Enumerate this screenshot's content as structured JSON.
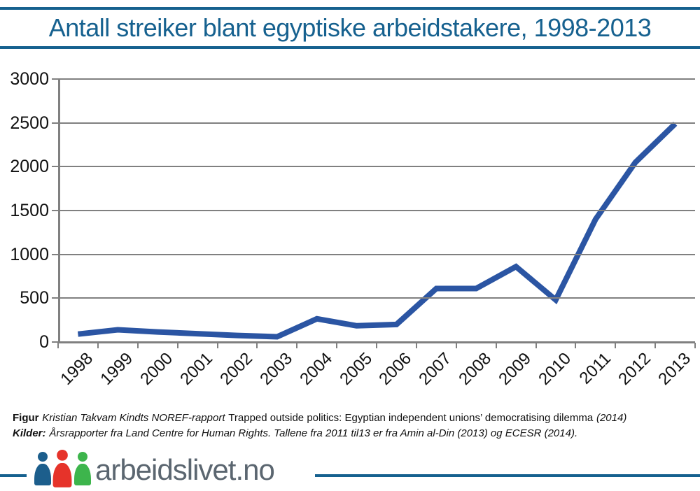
{
  "title": {
    "text": "Antall streiker blant egyptiske arbeidstakere, 1998-2013"
  },
  "chart_data": {
    "type": "line",
    "title": "Antall streiker blant egyptiske arbeidstakere, 1998-2013",
    "categories": [
      "1998",
      "1999",
      "2000",
      "2001",
      "2002",
      "2003",
      "2004",
      "2005",
      "2006",
      "2007",
      "2008",
      "2009",
      "2010",
      "2011",
      "2012",
      "2013"
    ],
    "values": [
      90,
      140,
      115,
      95,
      75,
      60,
      265,
      185,
      200,
      610,
      610,
      860,
      480,
      1400,
      2050,
      2490
    ],
    "series_name": "Antall streiker",
    "xlabel": "",
    "ylabel": "",
    "ylim": [
      0,
      3000
    ],
    "yticks": [
      0,
      500,
      1000,
      1500,
      2000,
      2500,
      3000
    ],
    "grid": "horizontal gridlines on",
    "legend_position": "none",
    "line_color": "#2b55a3",
    "grid_color": "#808080"
  },
  "caption": {
    "figur_label": "Figur",
    "figur_source_italic": "Kristian Takvam Kindts NOREF-rapport",
    "figur_report_title": "Trapped outside politics: Egyptian independent unions’ democratising dilemma",
    "figur_year_italic": "(2014)",
    "kilder_label": "Kilder:",
    "kilder_text": "Årsrapporter fra Land Centre for Human Rights. Tallene fra 2011 til13 er fra Amin al-Din (2013) og ECESR (2014)."
  },
  "logo": {
    "site_name": "arbeidslivet.no",
    "person_colors": [
      "#1c5e8c",
      "#e6332a",
      "#3db54c"
    ]
  },
  "colors": {
    "accent_blue": "#16618f",
    "series_blue": "#2b55a3",
    "grid_gray": "#808080",
    "logo_text_gray": "#5b6670",
    "text_black": "#111111"
  }
}
